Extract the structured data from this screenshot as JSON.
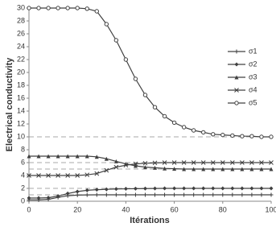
{
  "chart_data": {
    "type": "line",
    "xlabel": "Itérations",
    "ylabel": "Electrical conductivity",
    "x": [
      0,
      4,
      8,
      12,
      16,
      20,
      24,
      28,
      32,
      36,
      40,
      44,
      48,
      52,
      56,
      60,
      64,
      68,
      72,
      76,
      80,
      84,
      88,
      92,
      96,
      100
    ],
    "xlim": [
      0,
      100
    ],
    "xticks": [
      0,
      20,
      40,
      60,
      80,
      100
    ],
    "ylim": [
      0,
      30
    ],
    "yticks": [
      0,
      2,
      4,
      6,
      8,
      10,
      12,
      14,
      16,
      18,
      20,
      22,
      24,
      26,
      28,
      30
    ],
    "reference_lines": [
      10,
      6,
      5,
      2,
      1
    ],
    "legend": "right",
    "series": [
      {
        "name": "σ1",
        "color": "#404040",
        "marker": "plus",
        "values": [
          0.2,
          0.2,
          0.3,
          0.6,
          0.85,
          0.95,
          0.98,
          1,
          1,
          1,
          1,
          1,
          1,
          1,
          1,
          1,
          1,
          1,
          1,
          1,
          1,
          1,
          1,
          1,
          1,
          1
        ]
      },
      {
        "name": "σ2",
        "color": "#404040",
        "marker": "diamond",
        "values": [
          0.5,
          0.5,
          0.55,
          0.8,
          1.2,
          1.5,
          1.7,
          1.8,
          1.85,
          1.9,
          1.93,
          1.95,
          1.97,
          1.98,
          2,
          2,
          2,
          2,
          2,
          2,
          2,
          2,
          2,
          2,
          2,
          2
        ]
      },
      {
        "name": "σ3",
        "color": "#404040",
        "marker": "triangle",
        "values": [
          7,
          7,
          7,
          7,
          7,
          7,
          7,
          6.9,
          6.6,
          6.2,
          5.8,
          5.5,
          5.3,
          5.2,
          5.1,
          5.05,
          5,
          5,
          5,
          5,
          5,
          5,
          5,
          5,
          5,
          5
        ]
      },
      {
        "name": "σ4",
        "color": "#404040",
        "marker": "cross",
        "values": [
          4,
          4,
          4,
          4,
          4,
          4,
          4.1,
          4.3,
          4.8,
          5.3,
          5.6,
          5.8,
          5.9,
          5.95,
          6,
          6,
          6,
          6,
          6,
          6,
          6,
          6,
          6,
          6,
          6,
          6
        ]
      },
      {
        "name": "σ5",
        "color": "#404040",
        "marker": "circle",
        "values": [
          30,
          30,
          30,
          30,
          30,
          30,
          29.9,
          29.5,
          27.5,
          25,
          22,
          19,
          16.5,
          14.6,
          13.2,
          12.2,
          11.5,
          11,
          10.7,
          10.4,
          10.3,
          10.2,
          10.1,
          10.1,
          10,
          10
        ]
      }
    ]
  }
}
